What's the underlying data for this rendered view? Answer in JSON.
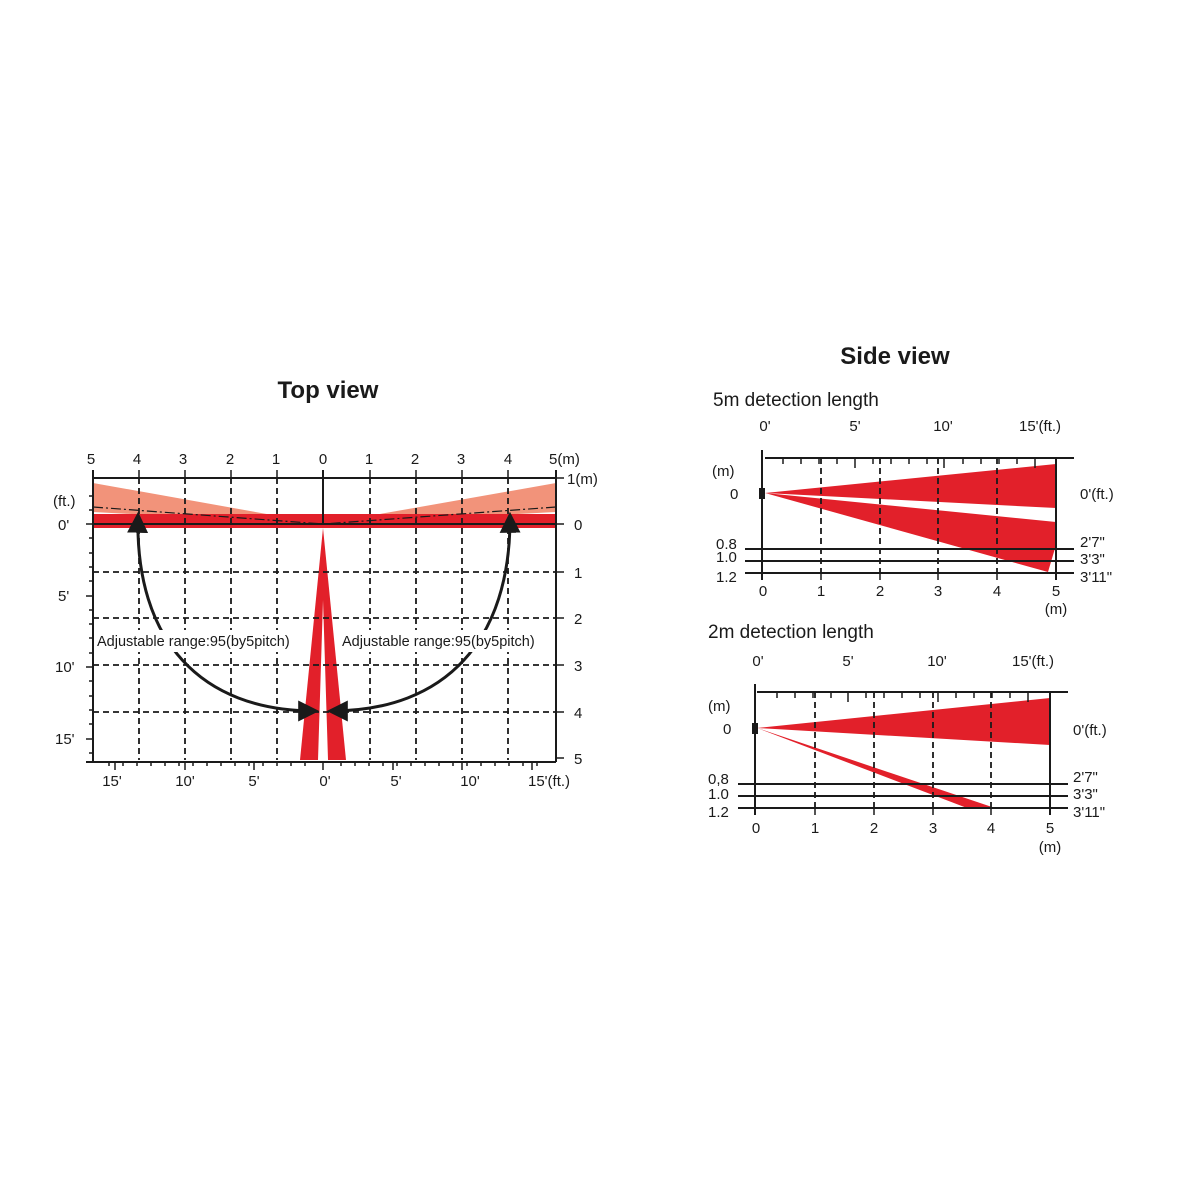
{
  "top_view": {
    "title": "Top view",
    "top_scale_m": [
      "5",
      "4",
      "3",
      "2",
      "1",
      "0",
      "1",
      "2",
      "3",
      "4",
      "5(m)"
    ],
    "bottom_scale_ft": [
      "15'",
      "10'",
      "5'",
      "0'",
      "5'",
      "10'",
      "15'(ft.)"
    ],
    "left_unit": "(ft.)",
    "left_scale_ft": [
      "0'",
      "5'",
      "10'",
      "15'"
    ],
    "right_scale_m": [
      "1(m)",
      "0",
      "1",
      "2",
      "3",
      "4",
      "5"
    ],
    "annotation_left": "Adjustable range:95(by5pitch)",
    "annotation_right": "Adjustable range:95(by5pitch)"
  },
  "side_view": {
    "title": "Side view",
    "panels": [
      {
        "subtitle": "5m detection length",
        "ft_scale": [
          "0'",
          "5'",
          "10'",
          "15'(ft.)"
        ],
        "m_unit": "(m)",
        "left_heights": [
          "0",
          "0.8",
          "1.0",
          "1.2"
        ],
        "right_heights": [
          "0'(ft.)",
          "2'7\"",
          "3'3\"",
          "3'11\""
        ],
        "m_scale": [
          "0",
          "1",
          "2",
          "3",
          "4",
          "5"
        ],
        "m_unit_bottom": "(m)"
      },
      {
        "subtitle": "2m detection length",
        "ft_scale": [
          "0'",
          "5'",
          "10'",
          "15'(ft.)"
        ],
        "m_unit": "(m)",
        "left_heights": [
          "0",
          "0,8",
          "1.0",
          "1.2"
        ],
        "right_heights": [
          "0'(ft.)",
          "2'7\"",
          "3'3\"",
          "3'11\""
        ],
        "m_scale": [
          "0",
          "1",
          "2",
          "3",
          "4",
          "5"
        ],
        "m_unit_bottom": "(m)"
      }
    ]
  },
  "colors": {
    "beam_red": "#e2202a",
    "beam_salmon": "#f2937a",
    "ink": "#1a1a1a"
  }
}
